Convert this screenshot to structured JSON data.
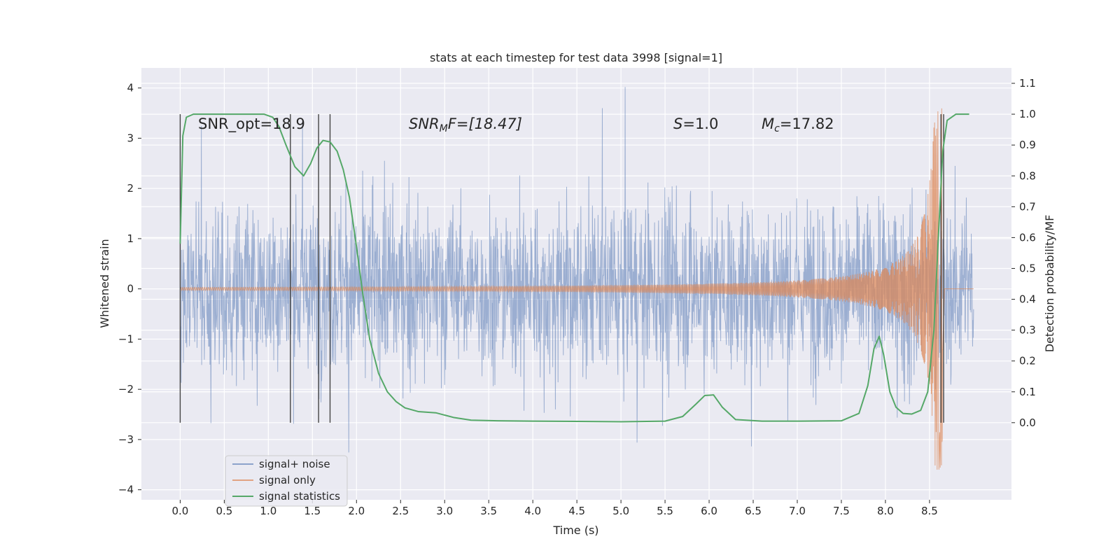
{
  "colors": {
    "background": "#eaeaf2",
    "grid": "#ffffff",
    "noise": "#4c72b0",
    "signal": "#dd8452",
    "stats": "#55a868",
    "vline": "#444444",
    "text": "#262626"
  },
  "chart_data": {
    "type": "line",
    "title": "stats at each timestep for test data 3998 [signal=1]",
    "xlabel": "Time (s)",
    "ylabel": "Whitened strain",
    "y2label": "Detection probability/MF",
    "xlim": [
      -0.44,
      9.43
    ],
    "ylim": [
      -4.2,
      4.4
    ],
    "y2lim": [
      -0.25,
      1.15
    ],
    "xticks": [
      "0.0",
      "0.5",
      "1.0",
      "1.5",
      "2.0",
      "2.5",
      "3.0",
      "3.5",
      "4.0",
      "4.5",
      "5.0",
      "5.5",
      "6.0",
      "6.5",
      "7.0",
      "7.5",
      "8.0",
      "8.5"
    ],
    "yticks": [
      "4",
      "3",
      "2",
      "1",
      "0",
      "−1",
      "−2",
      "−3",
      "−4"
    ],
    "y2ticks": [
      "1.1",
      "1.0",
      "0.9",
      "0.8",
      "0.7",
      "0.6",
      "0.5",
      "0.4",
      "0.3",
      "0.2",
      "0.1",
      "0.0"
    ],
    "annotations": {
      "snr_opt": "SNR_opt=18.9",
      "snr_mf_prefix": "SNR",
      "snr_mf_sub": "M",
      "snr_mf_suffix": "F=[18.47]",
      "s_var": "S",
      "s_value": "=1.0",
      "mc_var": "M",
      "mc_sub": "c",
      "mc_value": "=17.82"
    },
    "legend": {
      "position": "lower-left",
      "entries": [
        "signal+ noise",
        "signal only",
        "signal statistics"
      ]
    },
    "series": [
      {
        "name": "signal+ noise",
        "color": "#4c72b0",
        "t_range": [
          0,
          9.0
        ],
        "std": 0.85,
        "peak_max": 4.02,
        "peak_min": -3.9
      },
      {
        "name": "signal only",
        "color": "#dd8452",
        "chirp_end": 8.65,
        "amp_max": 3.6
      },
      {
        "name": "signal statistics",
        "color": "#55a868",
        "axis": "right",
        "x": [
          0.0,
          0.03,
          0.07,
          0.15,
          0.25,
          0.4,
          0.6,
          0.8,
          0.95,
          1.05,
          1.12,
          1.2,
          1.3,
          1.4,
          1.48,
          1.55,
          1.62,
          1.7,
          1.78,
          1.85,
          1.92,
          2.0,
          2.07,
          2.15,
          2.25,
          2.35,
          2.45,
          2.55,
          2.7,
          2.9,
          3.1,
          3.3,
          3.6,
          4.0,
          4.5,
          5.0,
          5.5,
          5.7,
          5.85,
          5.95,
          6.05,
          6.15,
          6.3,
          6.6,
          7.0,
          7.5,
          7.7,
          7.8,
          7.87,
          7.93,
          7.98,
          8.05,
          8.12,
          8.2,
          8.3,
          8.4,
          8.48,
          8.55,
          8.6,
          8.65,
          8.7,
          8.8,
          8.95
        ],
        "y": [
          0.58,
          0.93,
          0.99,
          1.0,
          1.0,
          1.0,
          1.0,
          1.0,
          1.0,
          0.99,
          0.96,
          0.9,
          0.83,
          0.8,
          0.84,
          0.89,
          0.915,
          0.91,
          0.88,
          0.82,
          0.73,
          0.57,
          0.42,
          0.27,
          0.16,
          0.1,
          0.068,
          0.048,
          0.036,
          0.032,
          0.017,
          0.008,
          0.006,
          0.005,
          0.004,
          0.003,
          0.005,
          0.02,
          0.06,
          0.088,
          0.09,
          0.05,
          0.01,
          0.005,
          0.005,
          0.006,
          0.03,
          0.12,
          0.24,
          0.28,
          0.22,
          0.1,
          0.05,
          0.03,
          0.028,
          0.04,
          0.1,
          0.3,
          0.6,
          0.88,
          0.98,
          1.0,
          1.0
        ]
      },
      {
        "name": "vertical markers",
        "color": "#444444",
        "x": [
          0.0,
          1.25,
          1.57,
          1.7,
          8.63,
          8.66
        ]
      }
    ]
  }
}
